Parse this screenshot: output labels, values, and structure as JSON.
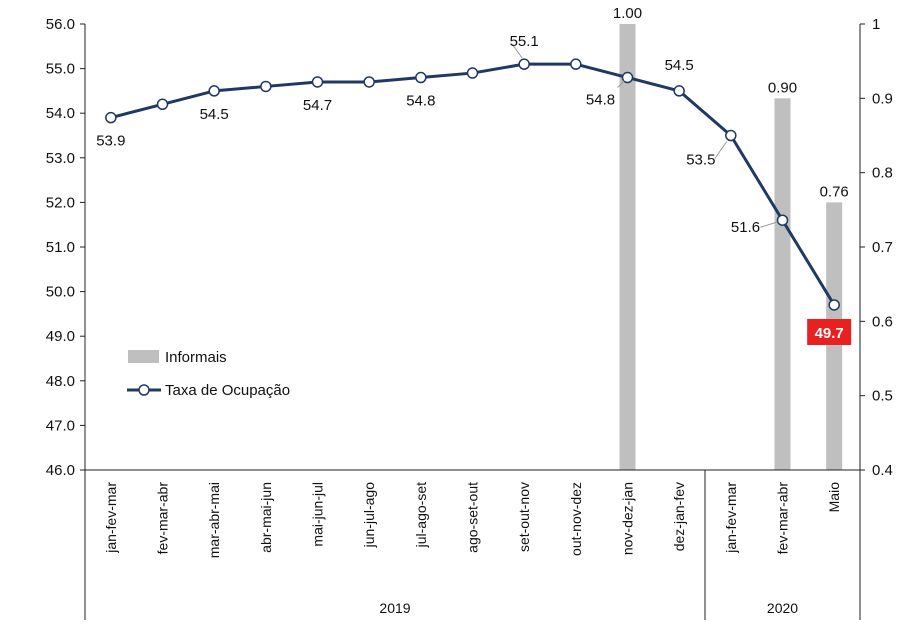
{
  "chart_data": {
    "type": "bar+line",
    "categories": [
      "jan-fev-mar",
      "fev-mar-abr",
      "mar-abr-mai",
      "abr-mai-jun",
      "mai-jun-jul",
      "jun-jul-ago",
      "jul-ago-set",
      "ago-set-out",
      "set-out-nov",
      "out-nov-dez",
      "nov-dez-jan",
      "dez-jan-fev",
      "jan-fev-mar",
      "fev-mar-abr",
      "Maio"
    ],
    "groups": [
      {
        "label": "2019",
        "categories": 12
      },
      {
        "label": "2020",
        "categories": 3
      }
    ],
    "series": [
      {
        "name": "Informais",
        "type": "bar",
        "axis": "right",
        "color": "#bfbfbf",
        "values": [
          null,
          null,
          null,
          null,
          null,
          null,
          null,
          null,
          null,
          null,
          1.0,
          null,
          null,
          0.9,
          0.76
        ],
        "labels": [
          "",
          "",
          "",
          "",
          "",
          "",
          "",
          "",
          "",
          "",
          "1.00",
          "",
          "",
          "0.90",
          "0.76"
        ]
      },
      {
        "name": "Taxa de Ocupação",
        "type": "line",
        "axis": "left",
        "color": "#1f3864",
        "values": [
          53.9,
          54.2,
          54.5,
          54.6,
          54.7,
          54.7,
          54.8,
          54.9,
          55.1,
          55.1,
          54.8,
          54.5,
          53.5,
          51.6,
          49.7
        ],
        "labels": [
          "53.9",
          "",
          "54.5",
          "",
          "54.7",
          "",
          "54.8",
          "",
          "55.1",
          "",
          "54.8",
          "54.5",
          "53.5",
          "51.6",
          "49.7"
        ],
        "highlight_color": "#e8201f"
      }
    ],
    "y_left": {
      "min": 46,
      "max": 56,
      "ticks": [
        "46.0",
        "47.0",
        "48.0",
        "49.0",
        "50.0",
        "51.0",
        "52.0",
        "53.0",
        "54.0",
        "55.0",
        "56.0"
      ]
    },
    "y_right": {
      "min": 0.4,
      "max": 1.0,
      "ticks": [
        "0.4",
        "0.5",
        "0.6",
        "0.7",
        "0.8",
        "0.9",
        "1"
      ]
    },
    "grid": false,
    "legend": "inside-left"
  }
}
